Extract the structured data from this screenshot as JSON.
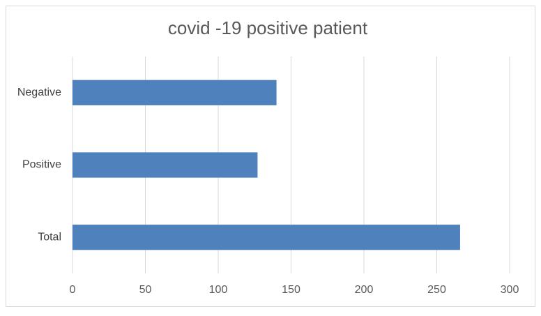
{
  "chart_data": {
    "type": "bar",
    "orientation": "horizontal",
    "title": "covid -19 positive patient",
    "categories": [
      "Negative",
      "Positive",
      "Total"
    ],
    "values": [
      140,
      127,
      266
    ],
    "color": "#4f81bd",
    "xlim": [
      0,
      300
    ],
    "xticks": [
      0,
      50,
      100,
      150,
      200,
      250,
      300
    ],
    "grid": true
  }
}
